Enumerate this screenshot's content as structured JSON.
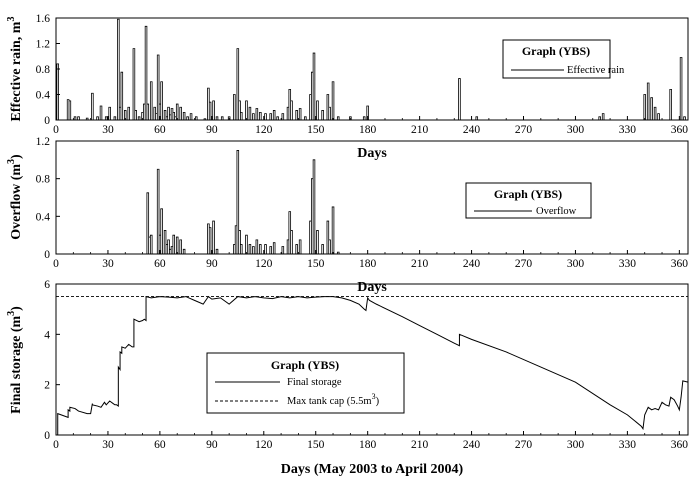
{
  "chart_data": [
    {
      "type": "bar",
      "title": "",
      "xlabel": "Days",
      "ylabel": "Effective rain, m3",
      "ylabel_main": "Effective rain, m",
      "ylabel_sup": "3",
      "xlim": [
        0,
        365
      ],
      "ylim": [
        0,
        1.6
      ],
      "xticks": [
        "0",
        "30",
        "60",
        "90",
        "120",
        "150",
        "180",
        "210",
        "240",
        "270",
        "300",
        "330",
        "360"
      ],
      "yticks": [
        "0",
        "0.4",
        "0.8",
        "1.2",
        "1.6"
      ],
      "legend": {
        "title": "Graph (YBS)",
        "placement": "top-right",
        "entries": [
          "Effective rain"
        ]
      },
      "series": [
        {
          "name": "Effective rain",
          "points": [
            [
              1,
              0.88
            ],
            [
              7,
              0.32
            ],
            [
              8,
              0.3
            ],
            [
              11,
              0.05
            ],
            [
              13,
              0.05
            ],
            [
              18,
              0.03
            ],
            [
              21,
              0.42
            ],
            [
              24,
              0.05
            ],
            [
              26,
              0.22
            ],
            [
              29,
              0.05
            ],
            [
              31,
              0.2
            ],
            [
              34,
              0.05
            ],
            [
              36,
              1.58
            ],
            [
              37,
              0.2
            ],
            [
              38,
              0.75
            ],
            [
              40,
              0.15
            ],
            [
              42,
              0.2
            ],
            [
              45,
              1.12
            ],
            [
              46,
              0.15
            ],
            [
              48,
              0.05
            ],
            [
              50,
              0.12
            ],
            [
              51,
              0.25
            ],
            [
              52,
              1.47
            ],
            [
              53,
              0.25
            ],
            [
              55,
              0.6
            ],
            [
              57,
              0.2
            ],
            [
              58,
              0.1
            ],
            [
              59,
              1.02
            ],
            [
              60,
              0.25
            ],
            [
              61,
              0.6
            ],
            [
              63,
              0.15
            ],
            [
              64,
              0.05
            ],
            [
              65,
              0.2
            ],
            [
              66,
              0.08
            ],
            [
              67,
              0.18
            ],
            [
              68,
              0.12
            ],
            [
              69,
              0.05
            ],
            [
              70,
              0.25
            ],
            [
              72,
              0.2
            ],
            [
              74,
              0.12
            ],
            [
              76,
              0.05
            ],
            [
              78,
              0.1
            ],
            [
              81,
              0.05
            ],
            [
              86,
              0.02
            ],
            [
              88,
              0.5
            ],
            [
              89,
              0.28
            ],
            [
              91,
              0.3
            ],
            [
              93,
              0.05
            ],
            [
              96,
              0.05
            ],
            [
              100,
              0.05
            ],
            [
              103,
              0.4
            ],
            [
              105,
              1.12
            ],
            [
              106,
              0.3
            ],
            [
              107,
              0.12
            ],
            [
              110,
              0.3
            ],
            [
              112,
              0.2
            ],
            [
              114,
              0.1
            ],
            [
              116,
              0.18
            ],
            [
              118,
              0.12
            ],
            [
              121,
              0.1
            ],
            [
              124,
              0.1
            ],
            [
              126,
              0.15
            ],
            [
              128,
              0.05
            ],
            [
              131,
              0.1
            ],
            [
              134,
              0.2
            ],
            [
              135,
              0.48
            ],
            [
              136,
              0.3
            ],
            [
              139,
              0.15
            ],
            [
              141,
              0.18
            ],
            [
              144,
              0.05
            ],
            [
              147,
              0.4
            ],
            [
              148,
              0.75
            ],
            [
              149,
              1.05
            ],
            [
              151,
              0.3
            ],
            [
              154,
              0.15
            ],
            [
              157,
              0.4
            ],
            [
              158,
              0.2
            ],
            [
              160,
              0.6
            ],
            [
              163,
              0.05
            ],
            [
              170,
              0.05
            ],
            [
              178,
              0.05
            ],
            [
              180,
              0.22
            ],
            [
              233,
              0.65
            ],
            [
              243,
              0.05
            ],
            [
              314,
              0.05
            ],
            [
              316,
              0.1
            ],
            [
              340,
              0.4
            ],
            [
              342,
              0.58
            ],
            [
              344,
              0.35
            ],
            [
              346,
              0.2
            ],
            [
              348,
              0.1
            ],
            [
              355,
              0.48
            ],
            [
              361,
              0.98
            ],
            [
              363,
              0.05
            ]
          ]
        }
      ]
    },
    {
      "type": "bar",
      "title": "",
      "xlabel": "Days",
      "ylabel": "Overflow (m3)",
      "ylabel_main": "Overflow (m",
      "ylabel_sup": "3",
      "ylabel_close": ")",
      "xlim": [
        0,
        365
      ],
      "ylim": [
        0,
        1.2
      ],
      "xticks": [
        "0",
        "30",
        "60",
        "90",
        "120",
        "150",
        "180",
        "210",
        "240",
        "270",
        "300",
        "330",
        "360"
      ],
      "yticks": [
        "0",
        "0.4",
        "0.8",
        "1.2"
      ],
      "legend": {
        "title": "Graph (YBS)",
        "placement": "center-right",
        "entries": [
          "Overflow"
        ]
      },
      "series": [
        {
          "name": "Overflow",
          "points": [
            [
              53,
              0.65
            ],
            [
              54,
              0.18
            ],
            [
              55,
              0.2
            ],
            [
              59,
              0.9
            ],
            [
              60,
              0.2
            ],
            [
              61,
              0.48
            ],
            [
              63,
              0.25
            ],
            [
              64,
              0.1
            ],
            [
              65,
              0.15
            ],
            [
              66,
              0.05
            ],
            [
              67,
              0.08
            ],
            [
              68,
              0.2
            ],
            [
              70,
              0.18
            ],
            [
              72,
              0.15
            ],
            [
              74,
              0.05
            ],
            [
              88,
              0.32
            ],
            [
              89,
              0.28
            ],
            [
              91,
              0.35
            ],
            [
              93,
              0.05
            ],
            [
              103,
              0.1
            ],
            [
              104,
              0.3
            ],
            [
              105,
              1.1
            ],
            [
              106,
              0.25
            ],
            [
              107,
              0.1
            ],
            [
              110,
              0.2
            ],
            [
              112,
              0.1
            ],
            [
              114,
              0.08
            ],
            [
              116,
              0.15
            ],
            [
              118,
              0.1
            ],
            [
              121,
              0.1
            ],
            [
              124,
              0.08
            ],
            [
              126,
              0.12
            ],
            [
              131,
              0.08
            ],
            [
              134,
              0.15
            ],
            [
              135,
              0.45
            ],
            [
              136,
              0.25
            ],
            [
              139,
              0.1
            ],
            [
              141,
              0.15
            ],
            [
              147,
              0.35
            ],
            [
              148,
              0.8
            ],
            [
              149,
              1.0
            ],
            [
              151,
              0.25
            ],
            [
              154,
              0.1
            ],
            [
              157,
              0.35
            ],
            [
              158,
              0.15
            ],
            [
              160,
              0.5
            ],
            [
              163,
              0.02
            ]
          ]
        }
      ]
    },
    {
      "type": "line",
      "title": "",
      "xlabel": "Days (May 2003 to April 2004)",
      "ylabel": "Final storage (m3)",
      "ylabel_main": "Final storage (m",
      "ylabel_sup": "3",
      "ylabel_close": ")",
      "xlim": [
        0,
        365
      ],
      "ylim": [
        0,
        6
      ],
      "xticks": [
        "0",
        "30",
        "60",
        "90",
        "120",
        "150",
        "180",
        "210",
        "240",
        "270",
        "300",
        "330",
        "360"
      ],
      "yticks": [
        "0",
        "2",
        "4",
        "6"
      ],
      "grid": false,
      "legend": {
        "title": "Graph (YBS)",
        "placement": "center-left",
        "entries": [
          "Final storage",
          "Max tank cap (5.5m3)"
        ]
      },
      "legend_entry2_main": "Max tank cap (5.5m",
      "legend_entry2_sup": "3",
      "legend_entry2_close": ")",
      "series": [
        {
          "name": "Final storage",
          "x": [
            0,
            1,
            1,
            7,
            7,
            8,
            8,
            11,
            13,
            18,
            20,
            21,
            21,
            24,
            26,
            28,
            29,
            31,
            33,
            34,
            35,
            36,
            36,
            37,
            37,
            38,
            38,
            40,
            42,
            44,
            45,
            45,
            48,
            50,
            51,
            52,
            52,
            55,
            60,
            65,
            70,
            75,
            80,
            85,
            88,
            90,
            95,
            100,
            105,
            110,
            115,
            120,
            125,
            130,
            135,
            140,
            145,
            150,
            155,
            160,
            165,
            170,
            175,
            178,
            179,
            180,
            181,
            185,
            200,
            210,
            220,
            230,
            233,
            233,
            240,
            260,
            280,
            300,
            320,
            330,
            338,
            339,
            340,
            342,
            344,
            346,
            348,
            350,
            352,
            354,
            355,
            357,
            359,
            360,
            361,
            362,
            365
          ],
          "y": [
            0,
            0,
            0.85,
            0.7,
            1.0,
            0.95,
            1.1,
            1.05,
            0.95,
            0.85,
            0.85,
            1.25,
            1.2,
            1.15,
            1.1,
            1.3,
            1.2,
            1.35,
            1.25,
            1.2,
            1.2,
            1.15,
            2.7,
            2.6,
            3.3,
            3.25,
            3.5,
            3.45,
            3.6,
            3.5,
            3.5,
            4.6,
            4.5,
            4.55,
            4.6,
            4.55,
            5.5,
            5.45,
            5.5,
            5.48,
            5.45,
            5.5,
            5.35,
            5.2,
            5.5,
            5.4,
            5.45,
            5.2,
            5.5,
            5.45,
            5.5,
            5.45,
            5.42,
            5.5,
            5.45,
            5.5,
            5.45,
            5.48,
            5.5,
            5.5,
            5.45,
            5.35,
            5.2,
            5.0,
            4.95,
            5.45,
            5.35,
            5.2,
            4.7,
            4.35,
            4.0,
            3.65,
            3.55,
            4.0,
            3.8,
            3.3,
            2.7,
            2.1,
            1.2,
            0.8,
            0.35,
            0.25,
            0.8,
            1.1,
            1.0,
            1.05,
            1.0,
            1.3,
            1.2,
            1.15,
            1.5,
            1.4,
            1.15,
            1.0,
            1.5,
            2.15,
            2.1
          ]
        },
        {
          "name": "Max tank cap (5.5m3)",
          "x": [
            0,
            365
          ],
          "y": [
            5.5,
            5.5
          ]
        }
      ]
    }
  ]
}
